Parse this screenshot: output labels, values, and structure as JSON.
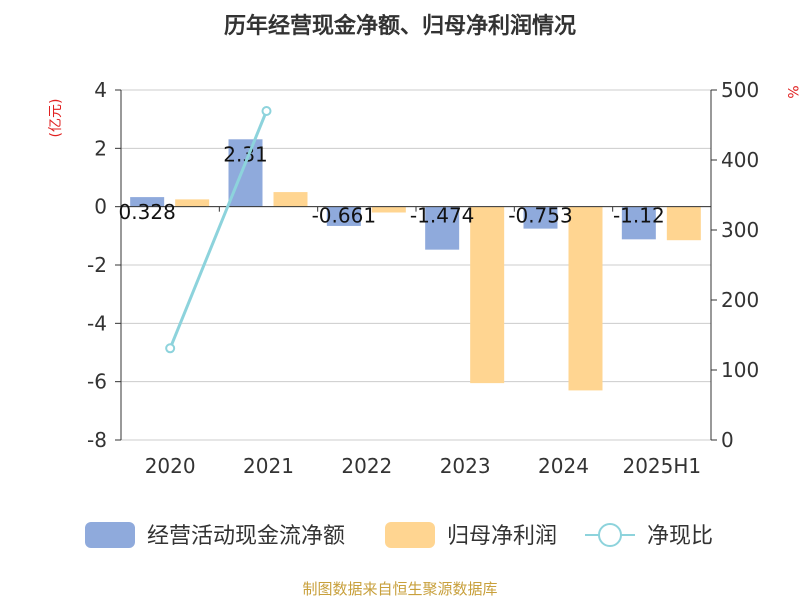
{
  "chart_data": {
    "type": "bar",
    "title": "历年经营现金净额、归母净利润情况",
    "left_axis_unit": "(亿元)",
    "right_axis_unit": "%",
    "categories": [
      "2020",
      "2021",
      "2022",
      "2023",
      "2024",
      "2025H1"
    ],
    "ylim_left": [
      -8,
      4
    ],
    "yticks_left": [
      "4",
      "2",
      "0",
      "-2",
      "-4",
      "-6",
      "-8"
    ],
    "ylim_right": [
      0,
      500
    ],
    "yticks_right": [
      "500",
      "400",
      "300",
      "200",
      "100",
      "0"
    ],
    "grid": true,
    "legend_position": "bottom",
    "series": [
      {
        "name": "经营活动现金流净额",
        "type": "bar",
        "axis": "left",
        "color": "#8faadc",
        "values": [
          0.328,
          2.31,
          -0.661,
          -1.474,
          -0.753,
          -1.12
        ],
        "labels": [
          "0.328",
          "2.31",
          "-0.661",
          "-1.474",
          "-0.753",
          "-1.12"
        ]
      },
      {
        "name": "归母净利润",
        "type": "bar",
        "axis": "left",
        "color": "#ffd591",
        "values": [
          0.25,
          0.5,
          -0.2,
          -6.05,
          -6.3,
          -1.15
        ],
        "labels": []
      },
      {
        "name": "净现比",
        "type": "line",
        "axis": "right",
        "color": "#8dd3dc",
        "values": [
          131,
          470,
          null,
          null,
          null,
          null
        ]
      }
    ]
  },
  "source_note": "制图数据来自恒生聚源数据库"
}
